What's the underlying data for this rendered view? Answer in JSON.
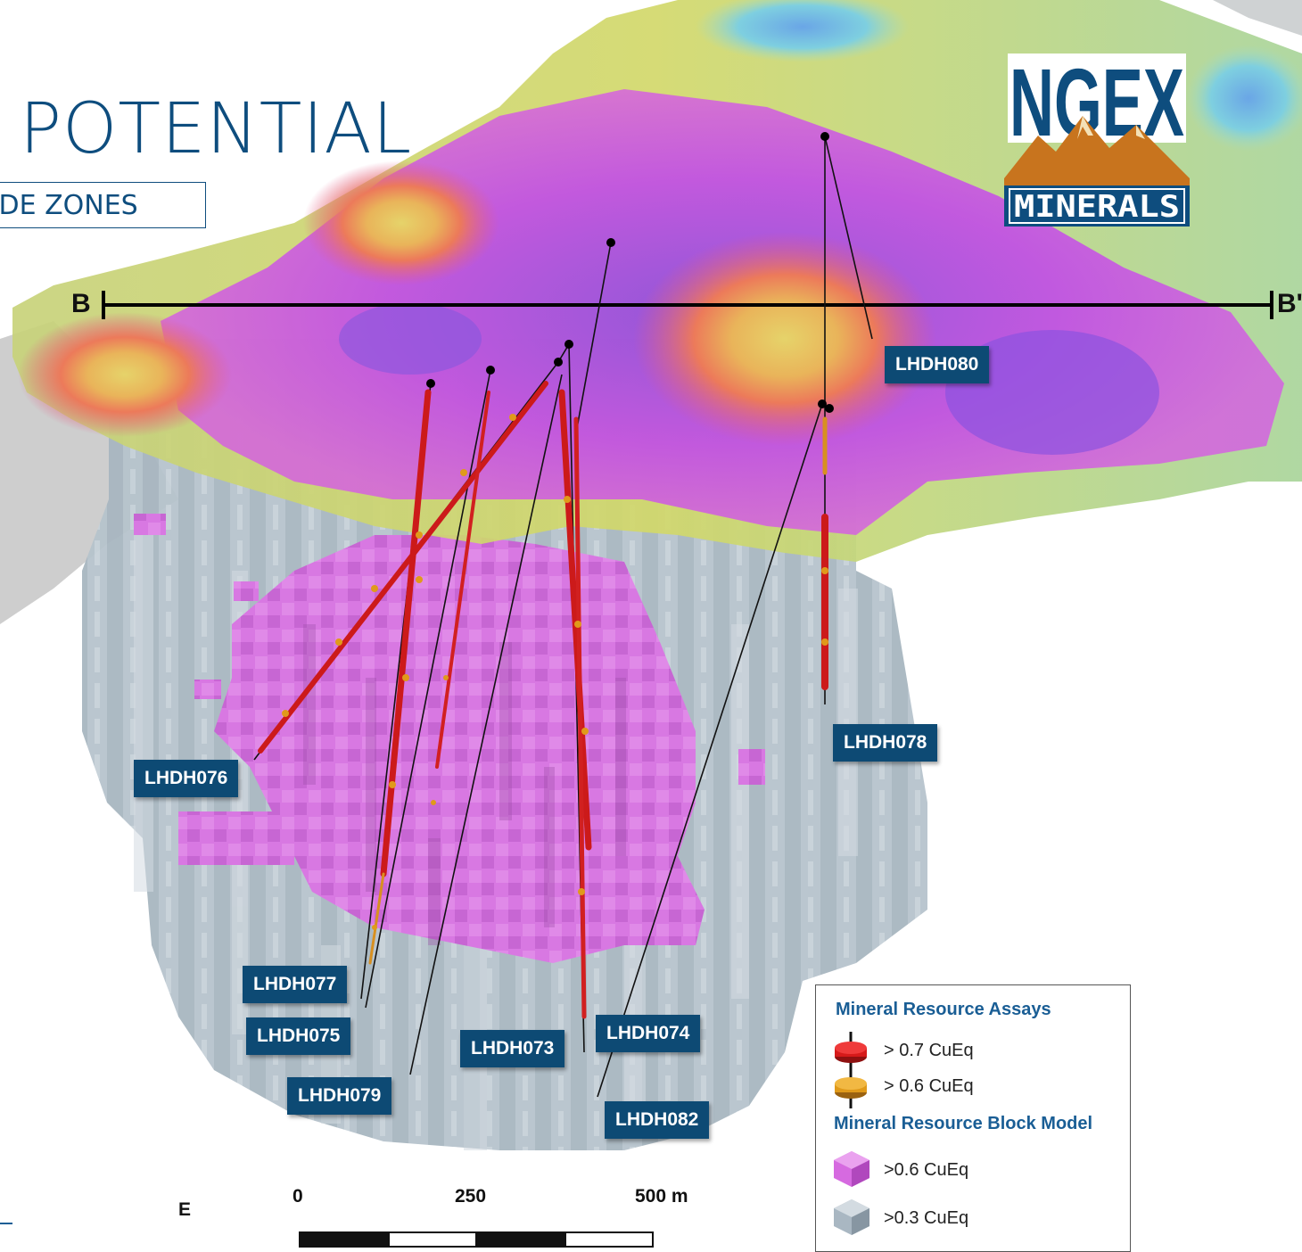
{
  "title": "POTENTIAL",
  "subtitle": "ADE ZONES",
  "logo": {
    "line1": "NGEX",
    "line2": "MINERALS"
  },
  "section_line": {
    "start_label": "B",
    "end_label": "B'"
  },
  "compass_label": "E",
  "drillholes": [
    "LHDH080",
    "LHDH078",
    "LHDH076",
    "LHDH077",
    "LHDH075",
    "LHDH079",
    "LHDH073",
    "LHDH074",
    "LHDH082"
  ],
  "legend": {
    "assays_heading": "Mineral Resource Assays",
    "assay_high": "> 0.7 CuEq",
    "assay_mid": "> 0.6 CuEq",
    "block_heading": "Mineral Resource Block Model",
    "block_high": ">0.6 CuEq",
    "block_low": ">0.3 CuEq",
    "colors": {
      "assay_high": "#d61a1a",
      "assay_mid": "#e09a1a",
      "block_high": "#d66ae0",
      "block_low": "#a9b7c2"
    }
  },
  "scale_bar": {
    "labels": [
      "0",
      "250",
      "500 m"
    ]
  }
}
